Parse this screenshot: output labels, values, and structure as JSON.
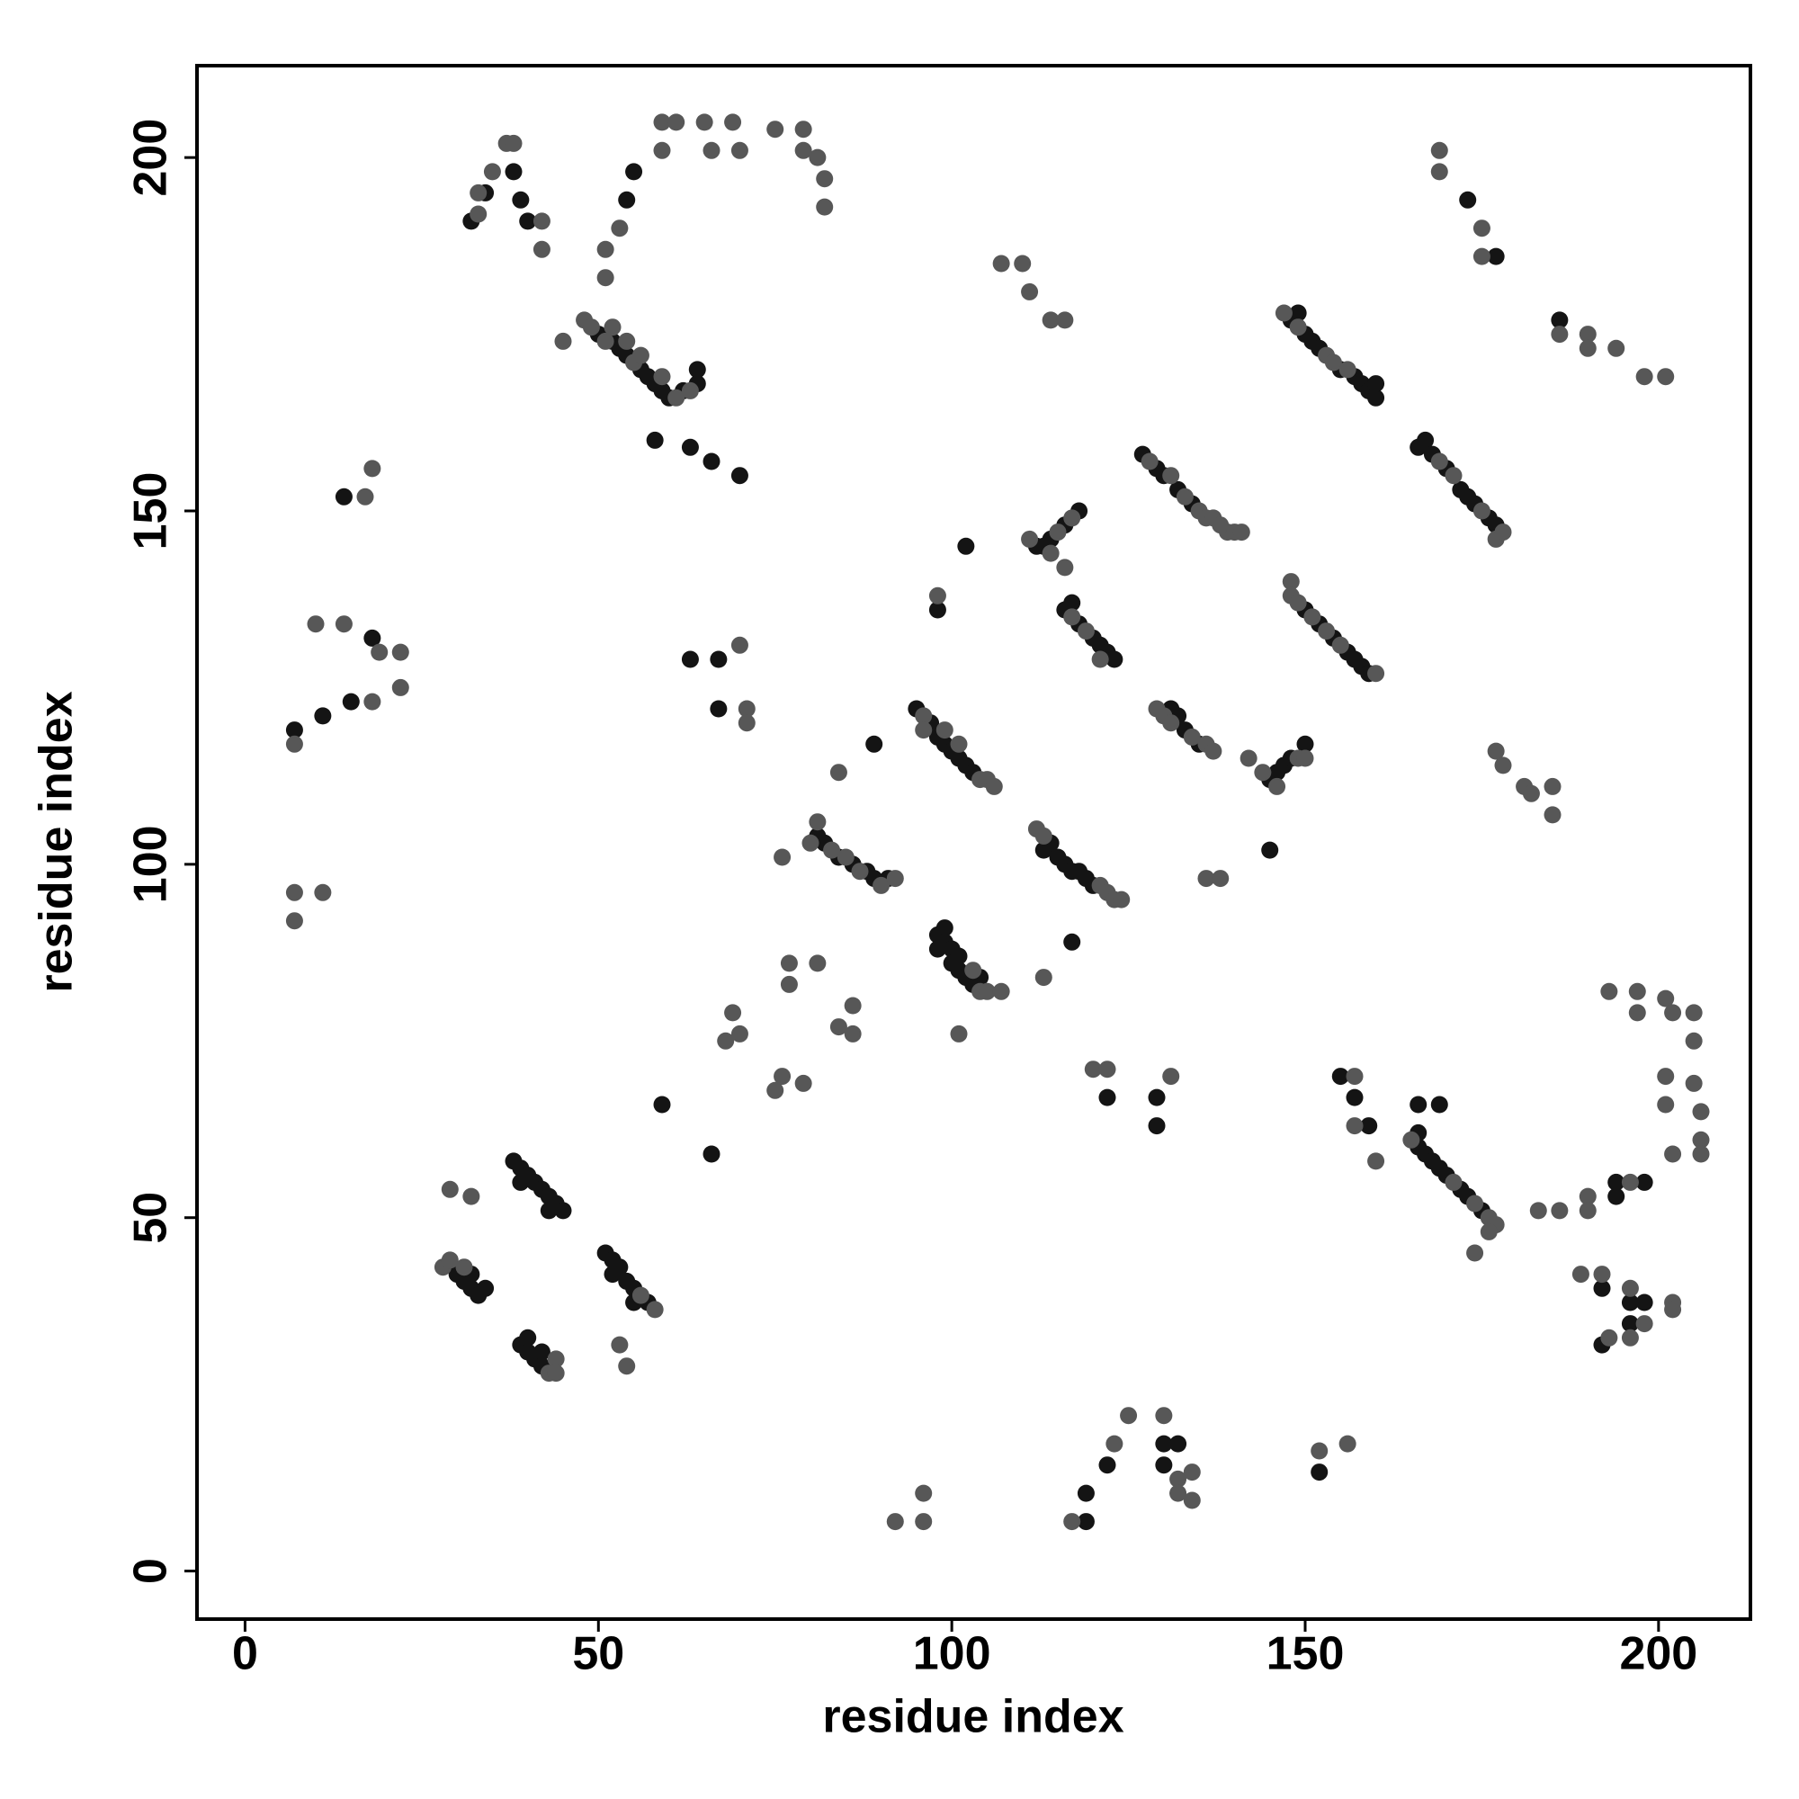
{
  "chart_data": {
    "type": "scatter",
    "xlabel": "residue index",
    "ylabel": "residue index",
    "xlim": [
      -6.8,
      213
    ],
    "ylim": [
      -6.8,
      213
    ],
    "xticks": [
      0,
      50,
      100,
      150,
      200
    ],
    "yticks": [
      0,
      50,
      100,
      150,
      200
    ],
    "series": [
      {
        "color": "#141414",
        "x": [
          38,
          34,
          39,
          40,
          32,
          55,
          54,
          50,
          52,
          53,
          54,
          56,
          57,
          58,
          59,
          60,
          62,
          64,
          64,
          58,
          63,
          66,
          70,
          7,
          11,
          15,
          14,
          18,
          63,
          67,
          67,
          59,
          66,
          89,
          81,
          82,
          84,
          86,
          88,
          89,
          91,
          95,
          97,
          98,
          99,
          100,
          101,
          102,
          103,
          98,
          98,
          99,
          99,
          100,
          100,
          101,
          101,
          102,
          103,
          104,
          98,
          102,
          112,
          113,
          114,
          116,
          118,
          116,
          117,
          118,
          120,
          121,
          122,
          123,
          127,
          129,
          130,
          132,
          134,
          113,
          114,
          115,
          116,
          117,
          118,
          119,
          120,
          117,
          131,
          132,
          133,
          135,
          145,
          146,
          147,
          148,
          150,
          145,
          148,
          149,
          150,
          151,
          152,
          155,
          157,
          158,
          159,
          160,
          160,
          150,
          152,
          154,
          156,
          157,
          158,
          159,
          166,
          167,
          168,
          170,
          172,
          173,
          174,
          176,
          177,
          173,
          177,
          186,
          30,
          31,
          32,
          32,
          33,
          34,
          38,
          39,
          39,
          40,
          41,
          42,
          43,
          43,
          44,
          45,
          51,
          52,
          52,
          53,
          54,
          55,
          55,
          57,
          39,
          40,
          40,
          41,
          42,
          42,
          119,
          119,
          122,
          130,
          132,
          130,
          122,
          129,
          129,
          152,
          155,
          157,
          159,
          166,
          166,
          167,
          168,
          169,
          170,
          172,
          173,
          175,
          166,
          169,
          194,
          198,
          194,
          192,
          196,
          198,
          196,
          192
        ],
        "y": [
          198,
          195,
          194,
          191,
          191,
          198,
          194,
          175,
          174,
          173,
          172,
          170,
          169,
          168,
          167,
          166,
          167,
          170,
          168,
          160,
          159,
          157,
          155,
          119,
          121,
          123,
          152,
          132,
          129,
          129,
          122,
          66,
          59,
          117,
          104,
          103,
          101,
          100,
          99,
          98,
          98,
          122,
          120,
          118,
          117,
          116,
          115,
          114,
          113,
          90,
          88,
          91,
          89,
          88,
          86,
          87,
          85,
          84,
          83,
          84,
          136,
          145,
          145,
          145,
          146,
          148,
          150,
          136,
          137,
          134,
          132,
          131,
          130,
          129,
          158,
          156,
          155,
          153,
          151,
          102,
          103,
          101,
          100,
          99,
          99,
          98,
          97,
          89,
          122,
          121,
          119,
          117,
          112,
          113,
          114,
          115,
          117,
          102,
          177,
          178,
          175,
          174,
          173,
          170,
          169,
          168,
          167,
          166,
          168,
          136,
          134,
          132,
          130,
          129,
          128,
          127,
          159,
          160,
          158,
          156,
          153,
          152,
          151,
          149,
          148,
          194,
          186,
          177,
          42,
          41,
          42,
          40,
          39,
          40,
          58,
          57,
          55,
          56,
          55,
          54,
          53,
          51,
          52,
          51,
          45,
          44,
          42,
          43,
          41,
          40,
          38,
          38,
          32,
          31,
          33,
          30,
          31,
          29,
          7,
          11,
          15,
          18,
          18,
          15,
          67,
          67,
          63,
          14,
          70,
          67,
          63,
          62,
          60,
          59,
          58,
          57,
          56,
          54,
          53,
          51,
          66,
          66,
          55,
          55,
          53,
          40,
          38,
          38,
          35,
          32
        ]
      },
      {
        "color": "#575757",
        "x": [
          37,
          38,
          33,
          33,
          35,
          42,
          42,
          51,
          51,
          53,
          59,
          61,
          65,
          66,
          69,
          70,
          75,
          79,
          79,
          81,
          82,
          82,
          59,
          45,
          48,
          49,
          51,
          52,
          54,
          55,
          56,
          59,
          61,
          63,
          7,
          10,
          14,
          19,
          22,
          22,
          18,
          18,
          17,
          7,
          11,
          7,
          70,
          71,
          71,
          84,
          76,
          80,
          81,
          83,
          85,
          87,
          90,
          92,
          96,
          96,
          99,
          101,
          104,
          105,
          106,
          103,
          104,
          105,
          107,
          101,
          77,
          81,
          77,
          84,
          86,
          86,
          69,
          68,
          70,
          75,
          76,
          79,
          98,
          107,
          110,
          111,
          114,
          116,
          111,
          115,
          117,
          114,
          116,
          117,
          119,
          121,
          128,
          131,
          133,
          135,
          136,
          137,
          138,
          139,
          140,
          141,
          112,
          113,
          121,
          122,
          123,
          124,
          113,
          129,
          130,
          131,
          134,
          136,
          137,
          136,
          138,
          142,
          144,
          146,
          149,
          150,
          147,
          149,
          153,
          154,
          156,
          148,
          148,
          149,
          151,
          153,
          155,
          160,
          169,
          171,
          175,
          177,
          178,
          169,
          169,
          175,
          175,
          186,
          190,
          190,
          194,
          198,
          201,
          177,
          178,
          181,
          182,
          185,
          185,
          28,
          29,
          31,
          29,
          32,
          56,
          58,
          53,
          54,
          43,
          44,
          44,
          92,
          96,
          96,
          117,
          123,
          125,
          130,
          132,
          134,
          134,
          132,
          120,
          122,
          131,
          152,
          156,
          157,
          157,
          160,
          165,
          171,
          174,
          176,
          177,
          174,
          176,
          183,
          186,
          190,
          190,
          196,
          193,
          197,
          197,
          201,
          202,
          205,
          205,
          201,
          201,
          205,
          206,
          206,
          202,
          206,
          189,
          192,
          196,
          202,
          202,
          193,
          196,
          198
        ],
        "y": [
          202,
          202,
          192,
          195,
          198,
          191,
          187,
          183,
          187,
          190,
          205,
          205,
          205,
          201,
          205,
          201,
          204,
          204,
          201,
          200,
          197,
          193,
          201,
          174,
          177,
          176,
          174,
          176,
          174,
          171,
          172,
          169,
          166,
          167,
          117,
          134,
          134,
          130,
          130,
          125,
          123,
          156,
          152,
          96,
          96,
          92,
          131,
          122,
          120,
          113,
          101,
          103,
          106,
          102,
          101,
          99,
          97,
          98,
          121,
          119,
          119,
          117,
          112,
          112,
          111,
          85,
          82,
          82,
          82,
          76,
          86,
          86,
          83,
          77,
          80,
          76,
          79,
          75,
          76,
          68,
          70,
          69,
          138,
          185,
          185,
          181,
          177,
          177,
          146,
          147,
          149,
          144,
          142,
          135,
          133,
          129,
          157,
          155,
          152,
          150,
          149,
          149,
          148,
          147,
          147,
          147,
          105,
          104,
          97,
          96,
          95,
          95,
          84,
          122,
          121,
          120,
          118,
          117,
          116,
          98,
          98,
          115,
          113,
          111,
          115,
          115,
          178,
          176,
          172,
          171,
          170,
          140,
          138,
          137,
          135,
          133,
          131,
          127,
          157,
          155,
          150,
          146,
          147,
          201,
          198,
          190,
          186,
          175,
          175,
          173,
          173,
          169,
          169,
          116,
          114,
          111,
          110,
          111,
          107,
          43,
          44,
          43,
          54,
          53,
          39,
          37,
          32,
          29,
          28,
          30,
          28,
          7,
          7,
          11,
          7,
          18,
          22,
          22,
          13,
          14,
          10,
          11,
          71,
          71,
          70,
          17,
          18,
          70,
          63,
          58,
          61,
          55,
          52,
          50,
          49,
          45,
          48,
          51,
          51,
          53,
          51,
          55,
          82,
          82,
          79,
          81,
          79,
          79,
          75,
          70,
          66,
          69,
          65,
          61,
          59,
          59,
          42,
          42,
          40,
          38,
          37,
          33,
          33,
          35
        ]
      }
    ]
  }
}
